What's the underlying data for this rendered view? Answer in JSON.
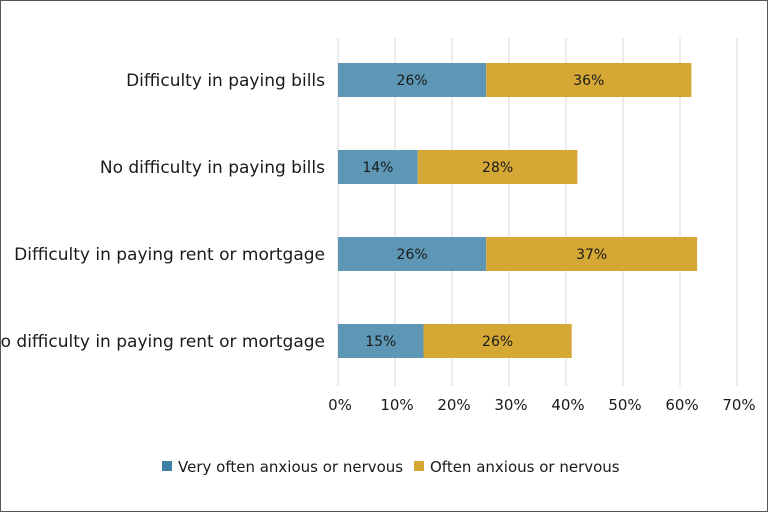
{
  "chart_data": {
    "type": "bar",
    "orientation": "horizontal",
    "stacked": true,
    "title": "",
    "xlabel": "",
    "ylabel": "",
    "categories": [
      "Difficulty in paying bills",
      "No difficulty in paying bills",
      "Difficulty in paying rent or mortgage",
      "No difficulty in paying rent or mortgage"
    ],
    "series": [
      {
        "name": "Very often anxious or nervous",
        "values": [
          26,
          14,
          26,
          15
        ],
        "labels": [
          "26%",
          "14%",
          "26%",
          "15%"
        ],
        "color": "#5e97b5"
      },
      {
        "name": "Often anxious or nervous",
        "values": [
          36,
          28,
          37,
          26
        ],
        "labels": [
          "36%",
          "28%",
          "37%",
          "26%"
        ],
        "color": "#d5a735"
      }
    ],
    "xlim": [
      0,
      70
    ],
    "xticks": [
      0,
      10,
      20,
      30,
      40,
      50,
      60,
      70
    ],
    "xtick_labels": [
      "0%",
      "10%",
      "20%",
      "30%",
      "40%",
      "50%",
      "60%",
      "70%"
    ],
    "grid": "vertical",
    "legend_position": "bottom",
    "colors": {
      "gridline": "#d9d9d9",
      "legend_blue": "#3e7fa6",
      "legend_gold": "#d5a735"
    }
  }
}
